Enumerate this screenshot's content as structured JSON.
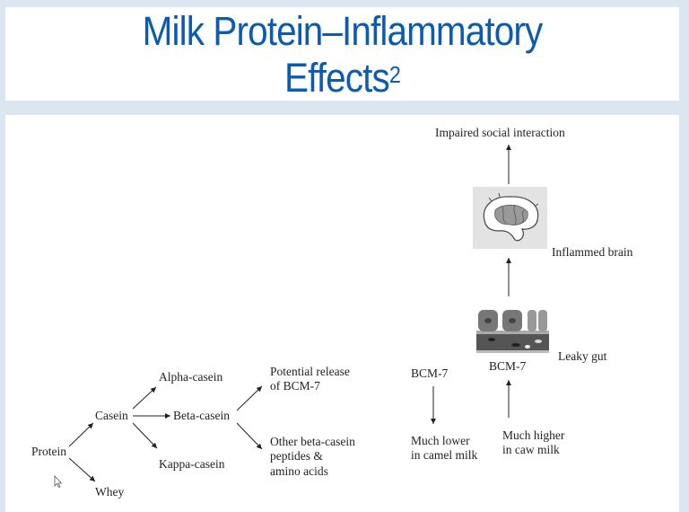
{
  "slide": {
    "title_main": "Milk Protein–Inflammatory",
    "title_line2": "Effects",
    "title_superscript": "2",
    "title_color": "#0d5bb0",
    "background_color": "#dce6f1"
  },
  "diagram": {
    "protein": "Protein",
    "casein": "Casein",
    "whey": "Whey",
    "alpha_casein": "Alpha-casein",
    "beta_casein": "Beta-casein",
    "kappa_casein": "Kappa-casein",
    "potential_release": [
      "Potential release",
      "of BCM-7"
    ],
    "other_peptides": [
      "Other beta-casein",
      "peptides &",
      "amino acids"
    ],
    "bcm7_left": "BCM-7",
    "much_lower": [
      "Much lower",
      "in camel milk"
    ],
    "bcm7_right": "BCM-7",
    "much_higher": [
      "Much higher",
      "in caw milk"
    ],
    "leaky_gut": "Leaky gut",
    "inflammed_brain": "Inflammed brain",
    "impaired_social": "Impaired social interaction",
    "images": [
      "gut-lining-illustration",
      "brain-illustration"
    ]
  },
  "cursor": "mouse-pointer-icon"
}
